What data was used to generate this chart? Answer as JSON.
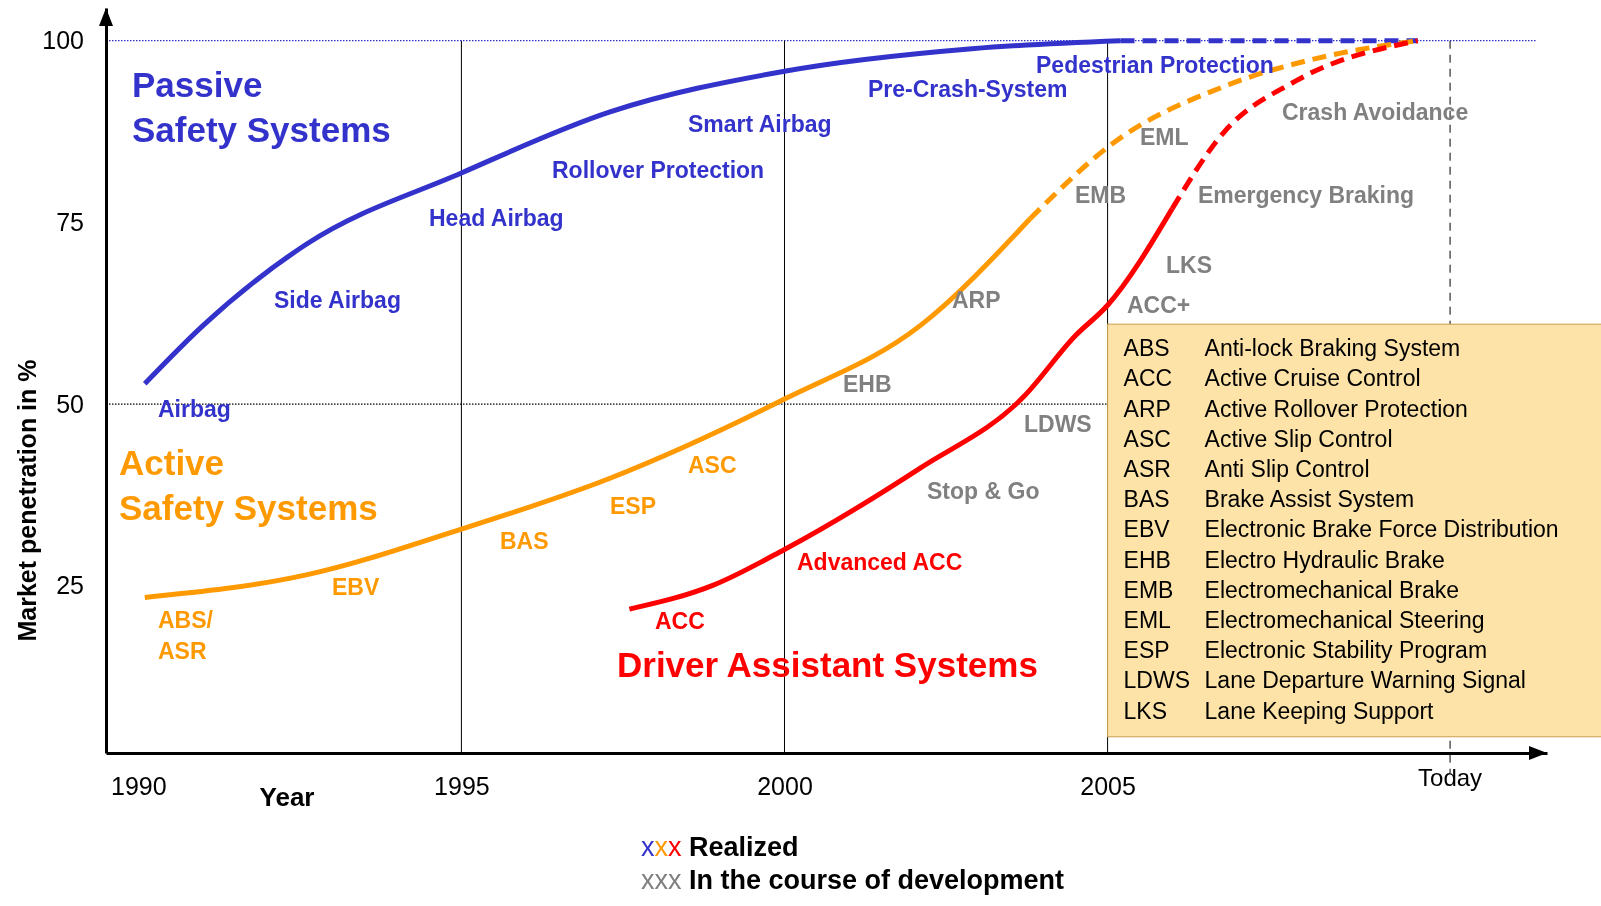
{
  "chart_data": {
    "type": "line",
    "xlabel": "Year",
    "ylabel": "Market penetration in %",
    "xlim": [
      1989.5,
      2011.8
    ],
    "ylim": [
      2,
      104.5
    ],
    "xticks": [
      1990,
      1995,
      2000,
      2005
    ],
    "yticks": [
      25,
      50,
      75,
      100
    ],
    "marker": "none",
    "series": [
      {
        "color": "#3333cc",
        "line_style": "solid",
        "x": [
          1990.1,
          1991.0,
          1992.6,
          1995.0,
          1997.3,
          2000.0,
          2002.9,
          2005.2
        ],
        "values": [
          52.8,
          60.8,
          72,
          81.8,
          90.2,
          95.8,
          98.9,
          100
        ]
      },
      {
        "color": "#3333cc",
        "line_style": "dashed",
        "x": [
          2005.2,
          2009.8
        ],
        "values": [
          100,
          100
        ]
      },
      {
        "color": "#ff9900",
        "line_style": "solid",
        "x": [
          1990.1,
          1992.6,
          1995.0,
          1997.3,
          2000.0,
          2002.1,
          2003.8
        ],
        "values": [
          23.4,
          26.5,
          32.8,
          39.8,
          50.7,
          60.8,
          75.5
        ]
      },
      {
        "color": "#ff9900",
        "line_style": "dashed",
        "x": [
          2003.8,
          2005.1,
          2006.8,
          2008.4,
          2009.8
        ],
        "values": [
          75.5,
          86,
          93.7,
          97.9,
          100
        ]
      },
      {
        "color": "#ff0000",
        "line_style": "solid",
        "x": [
          1997.6,
          1998.9,
          2000.0,
          2002.1,
          2003.7,
          2004.5,
          2005.0,
          2006.0
        ],
        "values": [
          21.8,
          25.1,
          30,
          41.2,
          51,
          59.4,
          63.6,
          76.9
        ]
      },
      {
        "color": "#ff0000",
        "line_style": "dashed",
        "x": [
          2006.0,
          2006.8,
          2007.9,
          2009.8
        ],
        "values": [
          76.9,
          87.4,
          94.4,
          100
        ]
      }
    ],
    "ref_lines": [
      {
        "axis": "y",
        "value": 100,
        "color": "#3333cc",
        "line_style": "dotted"
      },
      {
        "axis": "y",
        "value": 50,
        "color": "#000000",
        "line_style": "dotted"
      },
      {
        "axis": "x",
        "value": 1995,
        "color": "#000000",
        "line_style": "solid"
      },
      {
        "axis": "x",
        "value": 2000,
        "color": "#000000",
        "line_style": "solid"
      },
      {
        "axis": "x",
        "value": 2005,
        "color": "#000000",
        "line_style": "solid"
      },
      {
        "axis": "x",
        "value": 2010.3,
        "label": "Today",
        "color": "#000000",
        "line_style": "dashed"
      }
    ],
    "annotations": [
      "Passive\nSafety Systems",
      "Active\nSafety Systems",
      "Driver Assistant Systems",
      "Airbag",
      "Side Airbag",
      "Head Airbag",
      "Rollover Protection",
      "Smart Airbag",
      "Pre-Crash-System",
      "Pedestrian Protection",
      "ABS/\nASR",
      "EBV",
      "BAS",
      "ESP",
      "ASC",
      "EHB",
      "ARP",
      "EMB",
      "EML",
      "ACC",
      "Advanced ACC",
      "Stop & Go",
      "LDWS",
      "ACC+",
      "LKS",
      "Emergency Braking",
      "Crash Avoidance",
      "ABS Anti-lock Braking System",
      "ACC Active Cruise Control",
      "ARP Active Rollover Protection",
      "ASC Active Slip Control",
      "ASR Anti Slip Control",
      "BAS Brake Assist System",
      "EBV Electronic Brake Force Distribution",
      "EHB Electro Hydraulic Brake",
      "EMB Electromechanical Brake",
      "EML Electromechanical Steering",
      "ESP Electronic Stability Program",
      "LDWS Lane Departure Warning Signal",
      "LKS Lane Keeping Support",
      "xxx Realized",
      "xxx In the course of development"
    ]
  }
}
